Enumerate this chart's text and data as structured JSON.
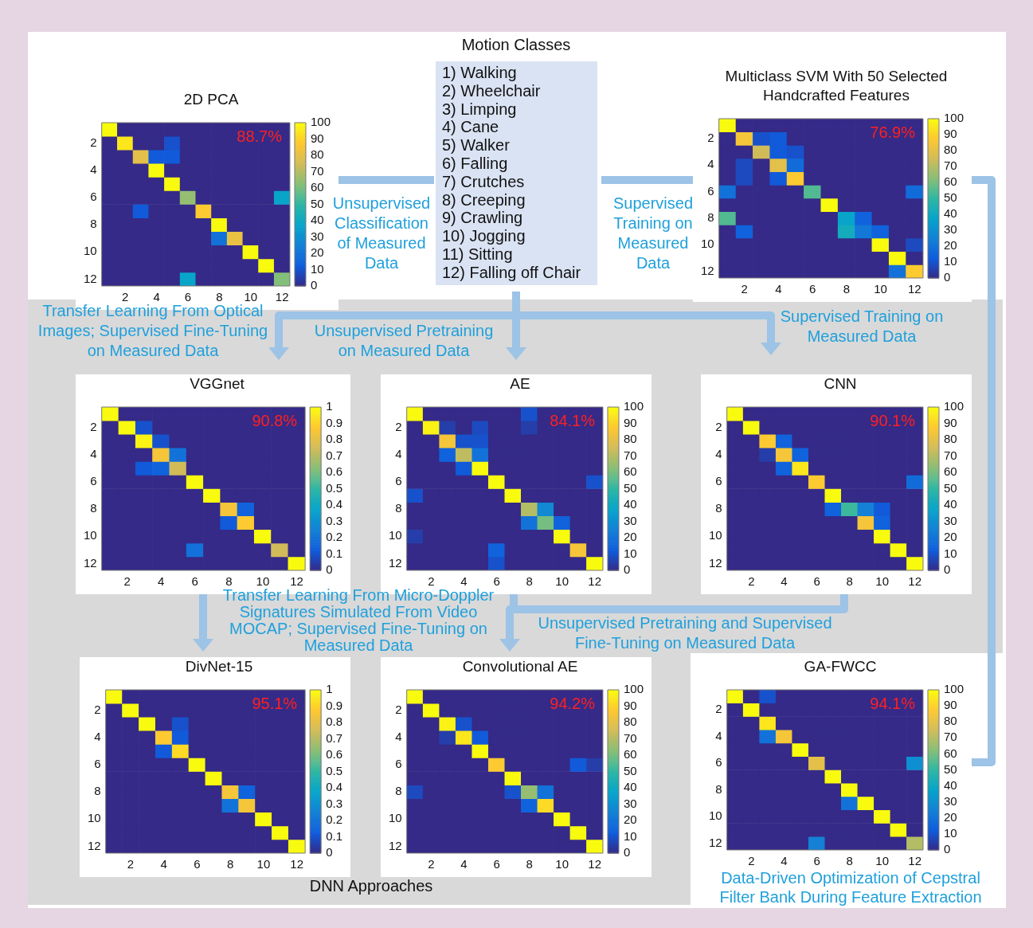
{
  "chart_data": [
    {
      "type": "other",
      "title": "Motion Classes",
      "annotations": [
        "1) Walking",
        "2) Wheelchair",
        "3) Limping",
        "4) Cane",
        "5) Walker",
        "6) Falling",
        "7) Crutches",
        "8) Creeping",
        "9) Crawling",
        "10) Jogging",
        "11) Sitting",
        "12) Falling off Chair",
        "DNN Approaches"
      ]
    },
    {
      "type": "heatmap",
      "title": "2D PCA",
      "categories": [
        null,
        "2",
        null,
        "4",
        null,
        "6",
        null,
        "8",
        null,
        "10",
        null,
        "12"
      ],
      "y_categories": [
        null,
        "2",
        null,
        "4",
        null,
        "6",
        null,
        "8",
        null,
        "10",
        null,
        "12"
      ],
      "clim": [
        0,
        100
      ],
      "cticks": [
        0,
        10,
        20,
        30,
        40,
        50,
        60,
        70,
        80,
        90,
        100
      ],
      "annotations": [
        "88.7%",
        "Unsupervised Classification of Measured Data"
      ],
      "cells": [
        [
          100,
          0,
          0,
          0,
          0,
          0,
          0,
          0,
          0,
          0,
          0,
          0
        ],
        [
          0,
          95,
          0,
          0,
          10,
          0,
          0,
          0,
          0,
          0,
          0,
          0
        ],
        [
          0,
          0,
          80,
          12,
          12,
          0,
          0,
          0,
          0,
          0,
          0,
          0
        ],
        [
          0,
          0,
          0,
          100,
          0,
          0,
          0,
          0,
          0,
          0,
          0,
          0
        ],
        [
          0,
          0,
          0,
          0,
          100,
          0,
          0,
          0,
          0,
          0,
          0,
          0
        ],
        [
          0,
          0,
          0,
          0,
          0,
          65,
          0,
          0,
          0,
          0,
          0,
          38
        ],
        [
          0,
          0,
          12,
          0,
          0,
          0,
          88,
          0,
          0,
          0,
          0,
          0
        ],
        [
          0,
          0,
          0,
          0,
          0,
          0,
          0,
          100,
          0,
          0,
          0,
          0
        ],
        [
          0,
          0,
          0,
          0,
          0,
          0,
          0,
          20,
          82,
          0,
          0,
          0
        ],
        [
          0,
          0,
          0,
          0,
          0,
          0,
          0,
          0,
          0,
          100,
          0,
          0
        ],
        [
          0,
          0,
          0,
          0,
          0,
          0,
          0,
          0,
          0,
          0,
          100,
          0
        ],
        [
          0,
          0,
          0,
          0,
          0,
          38,
          0,
          0,
          0,
          0,
          0,
          62
        ]
      ]
    },
    {
      "type": "heatmap",
      "title": "Multiclass SVM With 50 Selected Handcrafted Features",
      "categories": [
        null,
        "2",
        null,
        "4",
        null,
        "6",
        null,
        "8",
        null,
        "10",
        null,
        "12"
      ],
      "y_categories": [
        null,
        "2",
        null,
        "4",
        null,
        "6",
        null,
        "8",
        null,
        "10",
        null,
        "12"
      ],
      "clim": [
        0,
        100
      ],
      "cticks": [
        0,
        10,
        20,
        30,
        40,
        50,
        60,
        70,
        80,
        90,
        100
      ],
      "annotations": [
        "76.9%",
        "Supervised Training on Measured Data"
      ],
      "cells": [
        [
          100,
          0,
          0,
          0,
          0,
          0,
          0,
          0,
          0,
          0,
          0,
          0
        ],
        [
          0,
          85,
          10,
          12,
          0,
          0,
          0,
          0,
          0,
          0,
          0,
          0
        ],
        [
          0,
          0,
          75,
          12,
          10,
          0,
          0,
          0,
          0,
          0,
          0,
          0
        ],
        [
          0,
          8,
          0,
          80,
          18,
          0,
          0,
          0,
          0,
          0,
          0,
          0
        ],
        [
          0,
          8,
          0,
          12,
          88,
          0,
          0,
          0,
          0,
          0,
          0,
          0
        ],
        [
          20,
          0,
          0,
          0,
          0,
          55,
          0,
          0,
          0,
          0,
          0,
          18
        ],
        [
          0,
          0,
          0,
          0,
          0,
          0,
          100,
          0,
          0,
          0,
          0,
          0
        ],
        [
          55,
          0,
          0,
          0,
          0,
          0,
          0,
          38,
          15,
          0,
          0,
          0
        ],
        [
          0,
          15,
          0,
          0,
          0,
          0,
          0,
          42,
          22,
          15,
          0,
          0
        ],
        [
          0,
          0,
          0,
          0,
          0,
          0,
          0,
          0,
          0,
          100,
          0,
          8
        ],
        [
          0,
          0,
          0,
          0,
          0,
          0,
          0,
          0,
          0,
          0,
          100,
          0
        ],
        [
          0,
          0,
          0,
          0,
          0,
          0,
          0,
          0,
          0,
          0,
          20,
          88
        ]
      ]
    },
    {
      "type": "heatmap",
      "title": "VGGnet",
      "categories": [
        null,
        "2",
        null,
        "4",
        null,
        "6",
        null,
        "8",
        null,
        "10",
        null,
        "12"
      ],
      "y_categories": [
        null,
        "2",
        null,
        "4",
        null,
        "6",
        null,
        "8",
        null,
        "10",
        null,
        "12"
      ],
      "clim": [
        0,
        1
      ],
      "cticks": [
        0,
        0.1,
        0.2,
        0.3,
        0.4,
        0.5,
        0.6,
        0.7,
        0.8,
        0.9,
        1
      ],
      "annotations": [
        "90.8%",
        "Transfer Learning From Optical Images; Supervised Fine-Tuning on Measured Data"
      ],
      "cells": [
        [
          1,
          0,
          0,
          0,
          0,
          0,
          0,
          0,
          0,
          0,
          0,
          0
        ],
        [
          0,
          1,
          0.1,
          0,
          0,
          0,
          0,
          0,
          0,
          0,
          0,
          0
        ],
        [
          0,
          0,
          0.98,
          0.1,
          0,
          0,
          0,
          0,
          0,
          0,
          0,
          0
        ],
        [
          0,
          0,
          0,
          0.85,
          0.2,
          0,
          0,
          0,
          0,
          0,
          0,
          0
        ],
        [
          0,
          0,
          0.12,
          0.15,
          0.75,
          0,
          0,
          0,
          0,
          0,
          0,
          0
        ],
        [
          0,
          0,
          0,
          0,
          0,
          1,
          0,
          0,
          0,
          0,
          0,
          0
        ],
        [
          0,
          0,
          0,
          0,
          0,
          0,
          1,
          0,
          0,
          0,
          0,
          0
        ],
        [
          0,
          0,
          0,
          0,
          0,
          0,
          0,
          0.85,
          0.15,
          0,
          0,
          0
        ],
        [
          0,
          0,
          0,
          0,
          0,
          0,
          0,
          0.12,
          0.88,
          0,
          0,
          0
        ],
        [
          0,
          0,
          0,
          0,
          0,
          0,
          0,
          0,
          0,
          1,
          0,
          0
        ],
        [
          0,
          0,
          0,
          0,
          0,
          0.2,
          0,
          0,
          0,
          0,
          0.75,
          0
        ],
        [
          0,
          0,
          0,
          0,
          0,
          0,
          0,
          0,
          0,
          0,
          0,
          1
        ]
      ]
    },
    {
      "type": "heatmap",
      "title": "AE",
      "categories": [
        null,
        "2",
        null,
        "4",
        null,
        "6",
        null,
        "8",
        null,
        "10",
        null,
        "12"
      ],
      "y_categories": [
        null,
        "2",
        null,
        "4",
        null,
        "6",
        null,
        "8",
        null,
        "10",
        null,
        "12"
      ],
      "clim": [
        0,
        100
      ],
      "cticks": [
        0,
        10,
        20,
        30,
        40,
        50,
        60,
        70,
        80,
        90,
        100
      ],
      "annotations": [
        "84.1%",
        "Unsupervised Pretraining on Measured Data"
      ],
      "cells": [
        [
          100,
          0,
          0,
          0,
          0,
          0,
          0,
          10,
          0,
          0,
          0,
          0
        ],
        [
          0,
          98,
          5,
          0,
          8,
          0,
          0,
          5,
          0,
          0,
          0,
          0
        ],
        [
          0,
          0,
          85,
          10,
          10,
          0,
          0,
          0,
          0,
          0,
          0,
          0
        ],
        [
          0,
          0,
          15,
          72,
          20,
          0,
          0,
          0,
          0,
          0,
          0,
          0
        ],
        [
          0,
          0,
          0,
          12,
          100,
          0,
          0,
          0,
          0,
          0,
          0,
          0
        ],
        [
          0,
          0,
          0,
          0,
          0,
          100,
          0,
          0,
          0,
          0,
          0,
          10
        ],
        [
          10,
          0,
          0,
          0,
          0,
          0,
          100,
          0,
          0,
          0,
          0,
          0
        ],
        [
          0,
          0,
          0,
          0,
          0,
          0,
          0,
          70,
          28,
          0,
          0,
          0
        ],
        [
          0,
          0,
          0,
          0,
          0,
          0,
          0,
          20,
          60,
          15,
          0,
          0
        ],
        [
          5,
          0,
          0,
          0,
          0,
          0,
          0,
          0,
          0,
          100,
          0,
          0
        ],
        [
          0,
          0,
          0,
          0,
          0,
          15,
          0,
          0,
          0,
          0,
          85,
          0
        ],
        [
          0,
          0,
          0,
          0,
          0,
          10,
          0,
          0,
          0,
          0,
          0,
          100
        ]
      ]
    },
    {
      "type": "heatmap",
      "title": "CNN",
      "categories": [
        null,
        "2",
        null,
        "4",
        null,
        "6",
        null,
        "8",
        null,
        "10",
        null,
        "12"
      ],
      "y_categories": [
        null,
        "2",
        null,
        "4",
        null,
        "6",
        null,
        "8",
        null,
        "10",
        null,
        "12"
      ],
      "clim": [
        0,
        100
      ],
      "cticks": [
        0,
        10,
        20,
        30,
        40,
        50,
        60,
        70,
        80,
        90,
        100
      ],
      "annotations": [
        "90.1%",
        "Supervised Training on Measured Data"
      ],
      "cells": [
        [
          100,
          0,
          0,
          0,
          0,
          0,
          0,
          0,
          0,
          0,
          0,
          0
        ],
        [
          0,
          100,
          0,
          0,
          0,
          0,
          0,
          0,
          0,
          0,
          0,
          0
        ],
        [
          0,
          0,
          88,
          15,
          0,
          0,
          0,
          0,
          0,
          0,
          0,
          0
        ],
        [
          0,
          0,
          5,
          85,
          15,
          0,
          0,
          0,
          0,
          0,
          0,
          0
        ],
        [
          0,
          0,
          0,
          15,
          95,
          0,
          0,
          0,
          0,
          0,
          0,
          0
        ],
        [
          0,
          0,
          0,
          0,
          0,
          88,
          0,
          0,
          0,
          0,
          0,
          18
        ],
        [
          0,
          0,
          0,
          0,
          0,
          0,
          100,
          0,
          0,
          0,
          0,
          0
        ],
        [
          0,
          0,
          0,
          0,
          0,
          0,
          15,
          52,
          25,
          12,
          0,
          0
        ],
        [
          0,
          0,
          0,
          0,
          0,
          0,
          0,
          0,
          85,
          15,
          0,
          0
        ],
        [
          0,
          0,
          0,
          0,
          0,
          0,
          0,
          0,
          0,
          100,
          0,
          0
        ],
        [
          0,
          0,
          0,
          0,
          0,
          0,
          0,
          0,
          0,
          0,
          100,
          0
        ],
        [
          0,
          0,
          0,
          0,
          0,
          0,
          0,
          0,
          0,
          0,
          0,
          100
        ]
      ]
    },
    {
      "type": "heatmap",
      "title": "DivNet-15",
      "categories": [
        null,
        "2",
        null,
        "4",
        null,
        "6",
        null,
        "8",
        null,
        "10",
        null,
        "12"
      ],
      "y_categories": [
        null,
        "2",
        null,
        "4",
        null,
        "6",
        null,
        "8",
        null,
        "10",
        null,
        "12"
      ],
      "clim": [
        0,
        1
      ],
      "cticks": [
        0,
        0.1,
        0.2,
        0.3,
        0.4,
        0.5,
        0.6,
        0.7,
        0.8,
        0.9,
        1
      ],
      "annotations": [
        "95.1%",
        "Transfer Learning From Micro-Doppler Signatures Simulated From Video MOCAP; Supervised Fine-Tuning on Measured Data"
      ],
      "cells": [
        [
          1,
          0,
          0,
          0,
          0,
          0,
          0,
          0,
          0,
          0,
          0,
          0
        ],
        [
          0,
          1,
          0,
          0,
          0,
          0,
          0,
          0,
          0,
          0,
          0,
          0
        ],
        [
          0,
          0,
          1,
          0,
          0.1,
          0,
          0,
          0,
          0,
          0,
          0,
          0
        ],
        [
          0,
          0,
          0,
          0.88,
          0.12,
          0,
          0,
          0,
          0,
          0,
          0,
          0
        ],
        [
          0,
          0,
          0,
          0.12,
          0.92,
          0,
          0,
          0,
          0,
          0,
          0,
          0
        ],
        [
          0,
          0,
          0,
          0,
          0,
          1,
          0,
          0,
          0,
          0,
          0,
          0
        ],
        [
          0,
          0,
          0,
          0,
          0,
          0,
          1,
          0,
          0,
          0,
          0,
          0
        ],
        [
          0,
          0,
          0,
          0,
          0,
          0,
          0,
          0.85,
          0.15,
          0,
          0,
          0
        ],
        [
          0,
          0,
          0,
          0,
          0,
          0,
          0,
          0.2,
          0.85,
          0,
          0,
          0
        ],
        [
          0,
          0,
          0,
          0,
          0,
          0,
          0,
          0,
          0,
          1,
          0,
          0
        ],
        [
          0,
          0,
          0,
          0,
          0,
          0,
          0,
          0,
          0,
          0,
          1,
          0
        ],
        [
          0,
          0,
          0,
          0,
          0,
          0,
          0,
          0,
          0,
          0,
          0,
          1
        ]
      ]
    },
    {
      "type": "heatmap",
      "title": "Convolutional AE",
      "categories": [
        null,
        "2",
        null,
        "4",
        null,
        "6",
        null,
        "8",
        null,
        "10",
        null,
        "12"
      ],
      "y_categories": [
        null,
        "2",
        null,
        "4",
        null,
        "6",
        null,
        "8",
        null,
        "10",
        null,
        "12"
      ],
      "clim": [
        0,
        100
      ],
      "cticks": [
        0,
        10,
        20,
        30,
        40,
        50,
        60,
        70,
        80,
        90,
        100
      ],
      "annotations": [
        "94.2%",
        "Unsupervised Pretraining and Supervised Fine-Tuning on Measured Data"
      ],
      "cells": [
        [
          100,
          0,
          0,
          0,
          0,
          0,
          0,
          0,
          0,
          0,
          0,
          0
        ],
        [
          0,
          100,
          0,
          0,
          0,
          0,
          0,
          0,
          0,
          0,
          0,
          0
        ],
        [
          0,
          0,
          98,
          10,
          0,
          0,
          0,
          0,
          0,
          0,
          0,
          0
        ],
        [
          0,
          0,
          5,
          95,
          12,
          0,
          0,
          0,
          0,
          0,
          0,
          0
        ],
        [
          0,
          0,
          0,
          0,
          100,
          0,
          0,
          0,
          0,
          0,
          0,
          0
        ],
        [
          0,
          0,
          0,
          0,
          0,
          88,
          0,
          0,
          0,
          0,
          12,
          5
        ],
        [
          0,
          0,
          0,
          0,
          0,
          0,
          100,
          0,
          0,
          0,
          0,
          0
        ],
        [
          8,
          0,
          0,
          0,
          0,
          0,
          10,
          65,
          20,
          0,
          0,
          0
        ],
        [
          0,
          0,
          0,
          0,
          0,
          0,
          0,
          15,
          92,
          0,
          0,
          0
        ],
        [
          0,
          0,
          0,
          0,
          0,
          0,
          0,
          0,
          0,
          100,
          0,
          0
        ],
        [
          0,
          0,
          0,
          0,
          0,
          0,
          0,
          0,
          0,
          0,
          100,
          0
        ],
        [
          0,
          0,
          0,
          0,
          0,
          0,
          0,
          0,
          0,
          0,
          0,
          100
        ]
      ]
    },
    {
      "type": "heatmap",
      "title": "GA-FWCC",
      "categories": [
        null,
        "2",
        null,
        "4",
        null,
        "6",
        null,
        "8",
        null,
        "10",
        null,
        "12"
      ],
      "y_categories": [
        null,
        "2",
        null,
        "4",
        null,
        "6",
        null,
        "8",
        null,
        "10",
        null,
        "12"
      ],
      "clim": [
        0,
        100
      ],
      "cticks": [
        0,
        10,
        20,
        30,
        40,
        50,
        60,
        70,
        80,
        90,
        100
      ],
      "annotations": [
        "94.1%",
        "Data-Driven Optimization of Cepstral Filter Bank During Feature Extraction"
      ],
      "cells": [
        [
          100,
          0,
          10,
          0,
          0,
          0,
          0,
          0,
          0,
          0,
          0,
          0
        ],
        [
          0,
          100,
          0,
          0,
          0,
          0,
          0,
          0,
          0,
          0,
          0,
          0
        ],
        [
          0,
          0,
          95,
          0,
          0,
          0,
          0,
          0,
          0,
          0,
          0,
          0
        ],
        [
          0,
          0,
          20,
          85,
          0,
          0,
          0,
          0,
          0,
          0,
          0,
          0
        ],
        [
          0,
          0,
          0,
          0,
          100,
          0,
          0,
          0,
          0,
          0,
          0,
          0
        ],
        [
          0,
          0,
          0,
          0,
          0,
          80,
          0,
          0,
          0,
          0,
          0,
          30
        ],
        [
          0,
          0,
          0,
          0,
          0,
          0,
          100,
          0,
          0,
          0,
          0,
          0
        ],
        [
          0,
          0,
          0,
          0,
          0,
          0,
          0,
          100,
          0,
          0,
          0,
          0
        ],
        [
          0,
          0,
          0,
          0,
          0,
          0,
          0,
          20,
          100,
          0,
          0,
          0
        ],
        [
          0,
          0,
          0,
          0,
          0,
          0,
          0,
          0,
          0,
          100,
          0,
          0
        ],
        [
          0,
          0,
          0,
          0,
          0,
          0,
          0,
          0,
          0,
          0,
          100,
          0
        ],
        [
          0,
          0,
          0,
          0,
          0,
          25,
          0,
          0,
          0,
          0,
          0,
          70
        ]
      ]
    }
  ]
}
